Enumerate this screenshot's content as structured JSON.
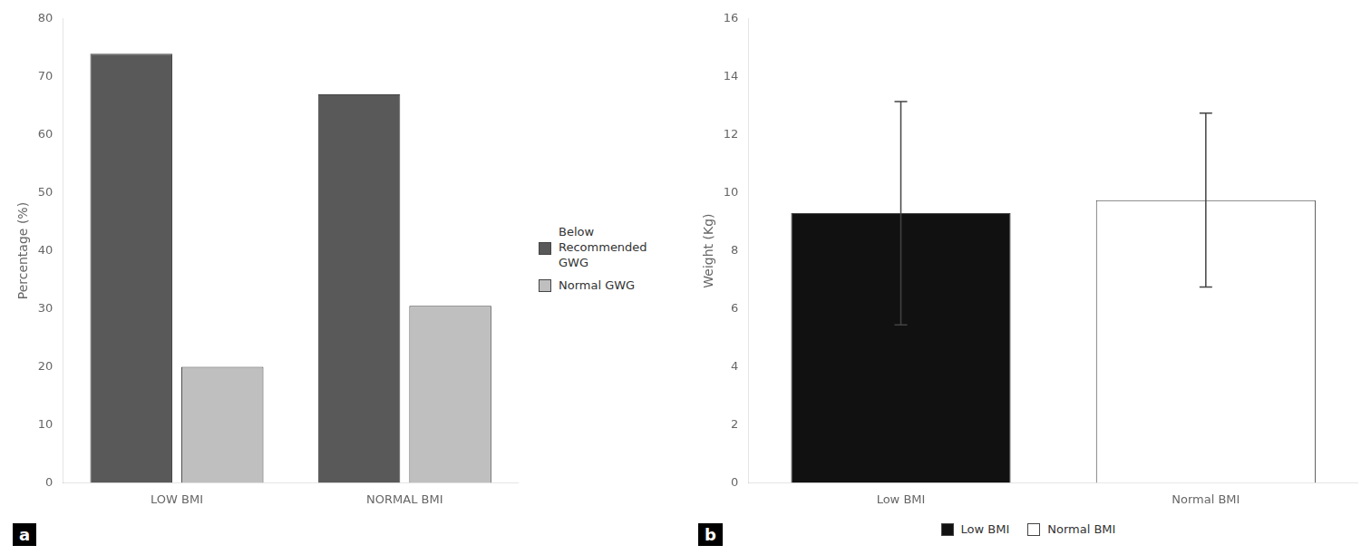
{
  "chart_data": [
    {
      "type": "bar",
      "categories": [
        "LOW BMI",
        "NORMAL BMI"
      ],
      "series": [
        {
          "name": "Below\nRecommended\nGWG",
          "color": "#595959",
          "values": [
            74.0,
            67.0
          ]
        },
        {
          "name": "Normal GWG",
          "color": "#bfbfbf",
          "values": [
            20.0,
            30.5
          ]
        }
      ],
      "ylabel": "Percentage (%)",
      "ylim": [
        0,
        80
      ],
      "yticks": [
        0,
        10,
        20,
        30,
        40,
        50,
        60,
        70,
        80
      ],
      "grid": false,
      "legend": "right",
      "annotations": [
        "a"
      ]
    },
    {
      "type": "bar",
      "categories": [
        "Low BMI",
        "Normal BMI"
      ],
      "series": [
        {
          "name": "Low BMI",
          "color": "#111111",
          "values": [
            9.3,
            null
          ],
          "errors": [
            3.85,
            null
          ]
        },
        {
          "name": "Normal BMI",
          "color": "#ffffff",
          "values": [
            null,
            9.75
          ],
          "errors": [
            null,
            3.0
          ]
        }
      ],
      "ylabel": "Weight (Kg)",
      "ylim": [
        0,
        16
      ],
      "yticks": [
        0,
        2,
        4,
        6,
        8,
        10,
        12,
        14,
        16
      ],
      "grid": false,
      "legend": "bottom",
      "annotations": [
        "b"
      ]
    }
  ]
}
